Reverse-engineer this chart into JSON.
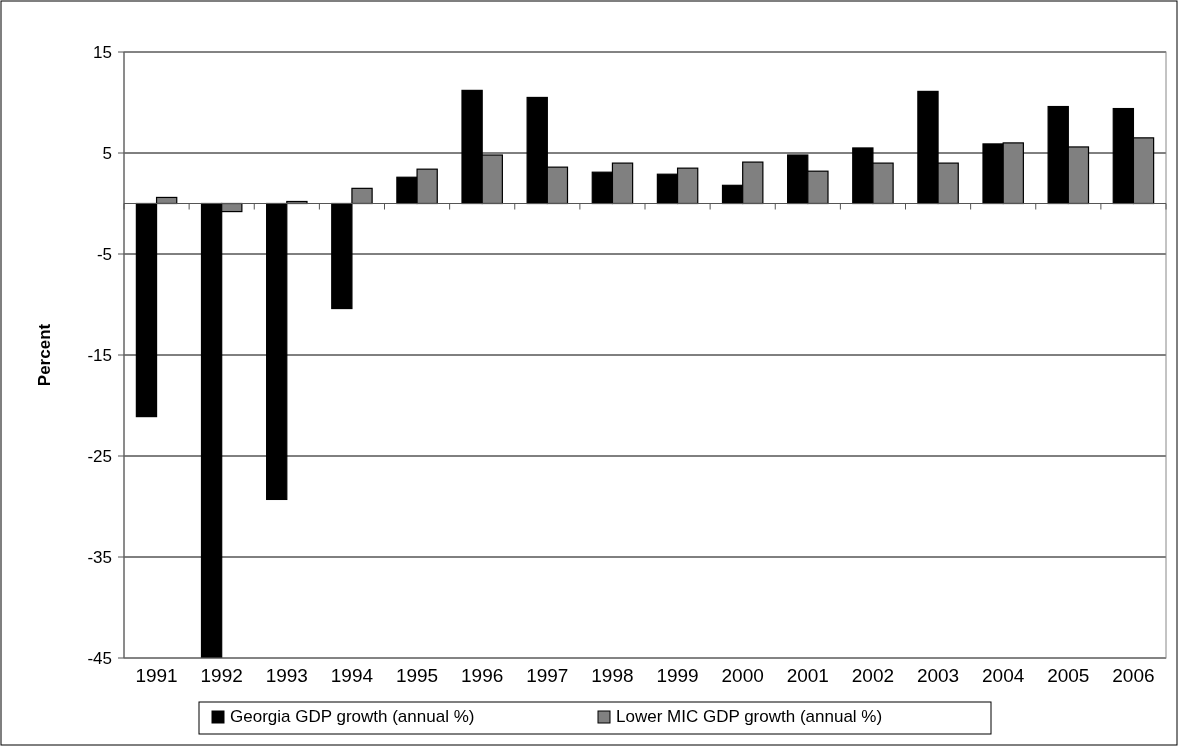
{
  "chart_data": {
    "type": "bar",
    "ylabel": "Percent",
    "categories": [
      "1991",
      "1992",
      "1993",
      "1994",
      "1995",
      "1996",
      "1997",
      "1998",
      "1999",
      "2000",
      "2001",
      "2002",
      "2003",
      "2004",
      "2005",
      "2006"
    ],
    "series": [
      {
        "name": "Georgia GDP growth (annual %)",
        "color": "#000000",
        "values": [
          -21.1,
          -44.9,
          -29.3,
          -10.4,
          2.6,
          11.2,
          10.5,
          3.1,
          2.9,
          1.8,
          4.8,
          5.5,
          11.1,
          5.9,
          9.6,
          9.4
        ]
      },
      {
        "name": "Lower MIC GDP growth (annual %)",
        "color": "#808080",
        "values": [
          0.6,
          -0.8,
          0.2,
          1.5,
          3.4,
          4.8,
          3.6,
          4.0,
          3.5,
          4.1,
          3.2,
          4.0,
          4.0,
          6.0,
          5.6,
          6.5
        ]
      }
    ],
    "ylim": [
      -45,
      15
    ],
    "yticks": [
      -45,
      -35,
      -25,
      -15,
      -5,
      5,
      15
    ],
    "grid": "y",
    "legend": "bottom"
  }
}
